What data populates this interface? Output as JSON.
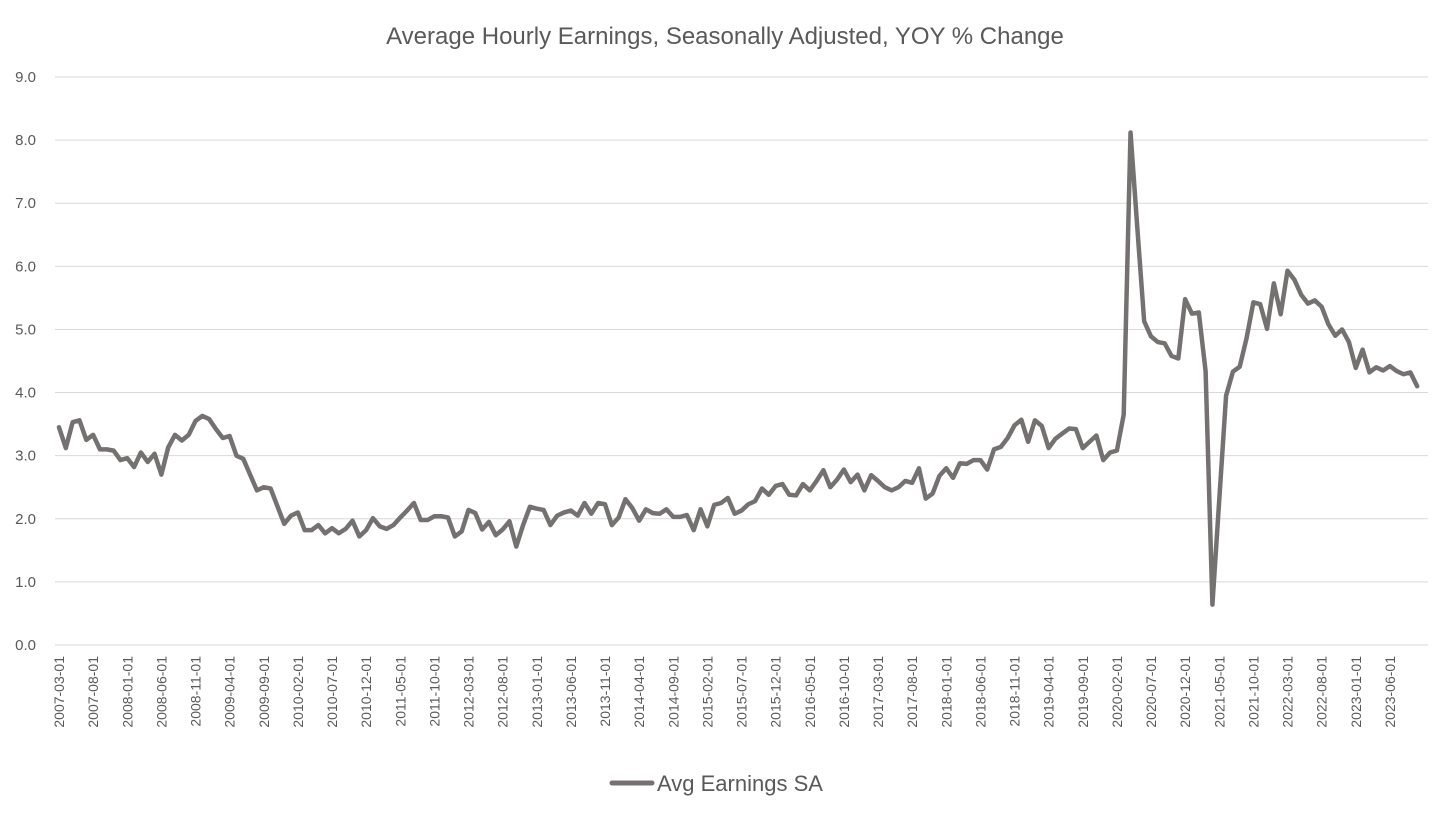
{
  "chart_data": {
    "type": "line",
    "title": "Average Hourly Earnings, Seasonally Adjusted, YOY % Change",
    "xlabel": "",
    "ylabel": "",
    "ylim": [
      0,
      9
    ],
    "yticks": [
      "0.0",
      "1.0",
      "2.0",
      "3.0",
      "4.0",
      "5.0",
      "6.0",
      "7.0",
      "8.0",
      "9.0"
    ],
    "grid": "horizontal",
    "legend_position": "bottom",
    "x_start": "2007-03-01",
    "x_end": "2023-11-01",
    "xtick_labels": [
      "2007-03-01",
      "2007-08-01",
      "2008-01-01",
      "2008-06-01",
      "2008-11-01",
      "2009-04-01",
      "2009-09-01",
      "2010-02-01",
      "2010-07-01",
      "2010-12-01",
      "2011-05-01",
      "2011-10-01",
      "2012-03-01",
      "2012-08-01",
      "2013-01-01",
      "2013-06-01",
      "2013-11-01",
      "2014-04-01",
      "2014-09-01",
      "2015-02-01",
      "2015-07-01",
      "2015-12-01",
      "2016-05-01",
      "2016-10-01",
      "2017-03-01",
      "2017-08-01",
      "2018-01-01",
      "2018-06-01",
      "2018-11-01",
      "2019-04-01",
      "2019-09-01",
      "2020-02-01",
      "2020-07-01",
      "2020-12-01",
      "2021-05-01",
      "2021-10-01",
      "2022-03-01",
      "2022-08-01",
      "2023-01-01",
      "2023-06-01"
    ],
    "series": [
      {
        "name": "Avg Earnings SA",
        "color": "#767171",
        "values": [
          3.45,
          3.12,
          3.53,
          3.56,
          3.25,
          3.33,
          3.1,
          3.1,
          3.08,
          2.93,
          2.96,
          2.82,
          3.05,
          2.9,
          3.03,
          2.7,
          3.13,
          3.33,
          3.24,
          3.33,
          3.55,
          3.63,
          3.58,
          3.42,
          3.28,
          3.31,
          3,
          2.95,
          2.7,
          2.45,
          2.5,
          2.48,
          2.2,
          1.92,
          2.05,
          2.1,
          1.82,
          1.82,
          1.9,
          1.77,
          1.85,
          1.77,
          1.84,
          1.97,
          1.72,
          1.82,
          2.01,
          1.88,
          1.84,
          1.9,
          2.02,
          2.13,
          2.25,
          1.98,
          1.98,
          2.04,
          2.04,
          2.02,
          1.72,
          1.8,
          2.14,
          2.09,
          1.83,
          1.95,
          1.74,
          1.83,
          1.96,
          1.56,
          1.9,
          2.19,
          2.16,
          2.14,
          1.9,
          2.05,
          2.1,
          2.13,
          2.05,
          2.25,
          2.08,
          2.25,
          2.23,
          1.9,
          2.02,
          2.31,
          2.17,
          1.97,
          2.15,
          2.09,
          2.08,
          2.15,
          2.03,
          2.03,
          2.06,
          1.82,
          2.15,
          1.88,
          2.22,
          2.25,
          2.33,
          2.08,
          2.13,
          2.23,
          2.28,
          2.48,
          2.38,
          2.52,
          2.55,
          2.38,
          2.37,
          2.55,
          2.45,
          2.6,
          2.77,
          2.5,
          2.62,
          2.78,
          2.58,
          2.7,
          2.45,
          2.69,
          2.6,
          2.5,
          2.45,
          2.5,
          2.6,
          2.57,
          2.8,
          2.32,
          2.4,
          2.68,
          2.8,
          2.65,
          2.88,
          2.87,
          2.93,
          2.93,
          2.78,
          3.1,
          3.14,
          3.28,
          3.48,
          3.57,
          3.22,
          3.56,
          3.47,
          3.12,
          3.27,
          3.35,
          3.43,
          3.42,
          3.12,
          3.22,
          3.32,
          2.93,
          3.05,
          3.08,
          3.65,
          8.12,
          6.6,
          5.13,
          4.89,
          4.8,
          4.78,
          4.58,
          4.54,
          5.48,
          5.25,
          5.27,
          4.34,
          0.64,
          2.3,
          3.95,
          4.33,
          4.41,
          4.86,
          5.43,
          5.4,
          5.01,
          5.73,
          5.24,
          5.93,
          5.79,
          5.55,
          5.41,
          5.46,
          5.36,
          5.08,
          4.9,
          5,
          4.8,
          4.39,
          4.68,
          4.32,
          4.4,
          4.35,
          4.42,
          4.34,
          4.29,
          4.32,
          4.1
        ]
      }
    ]
  }
}
